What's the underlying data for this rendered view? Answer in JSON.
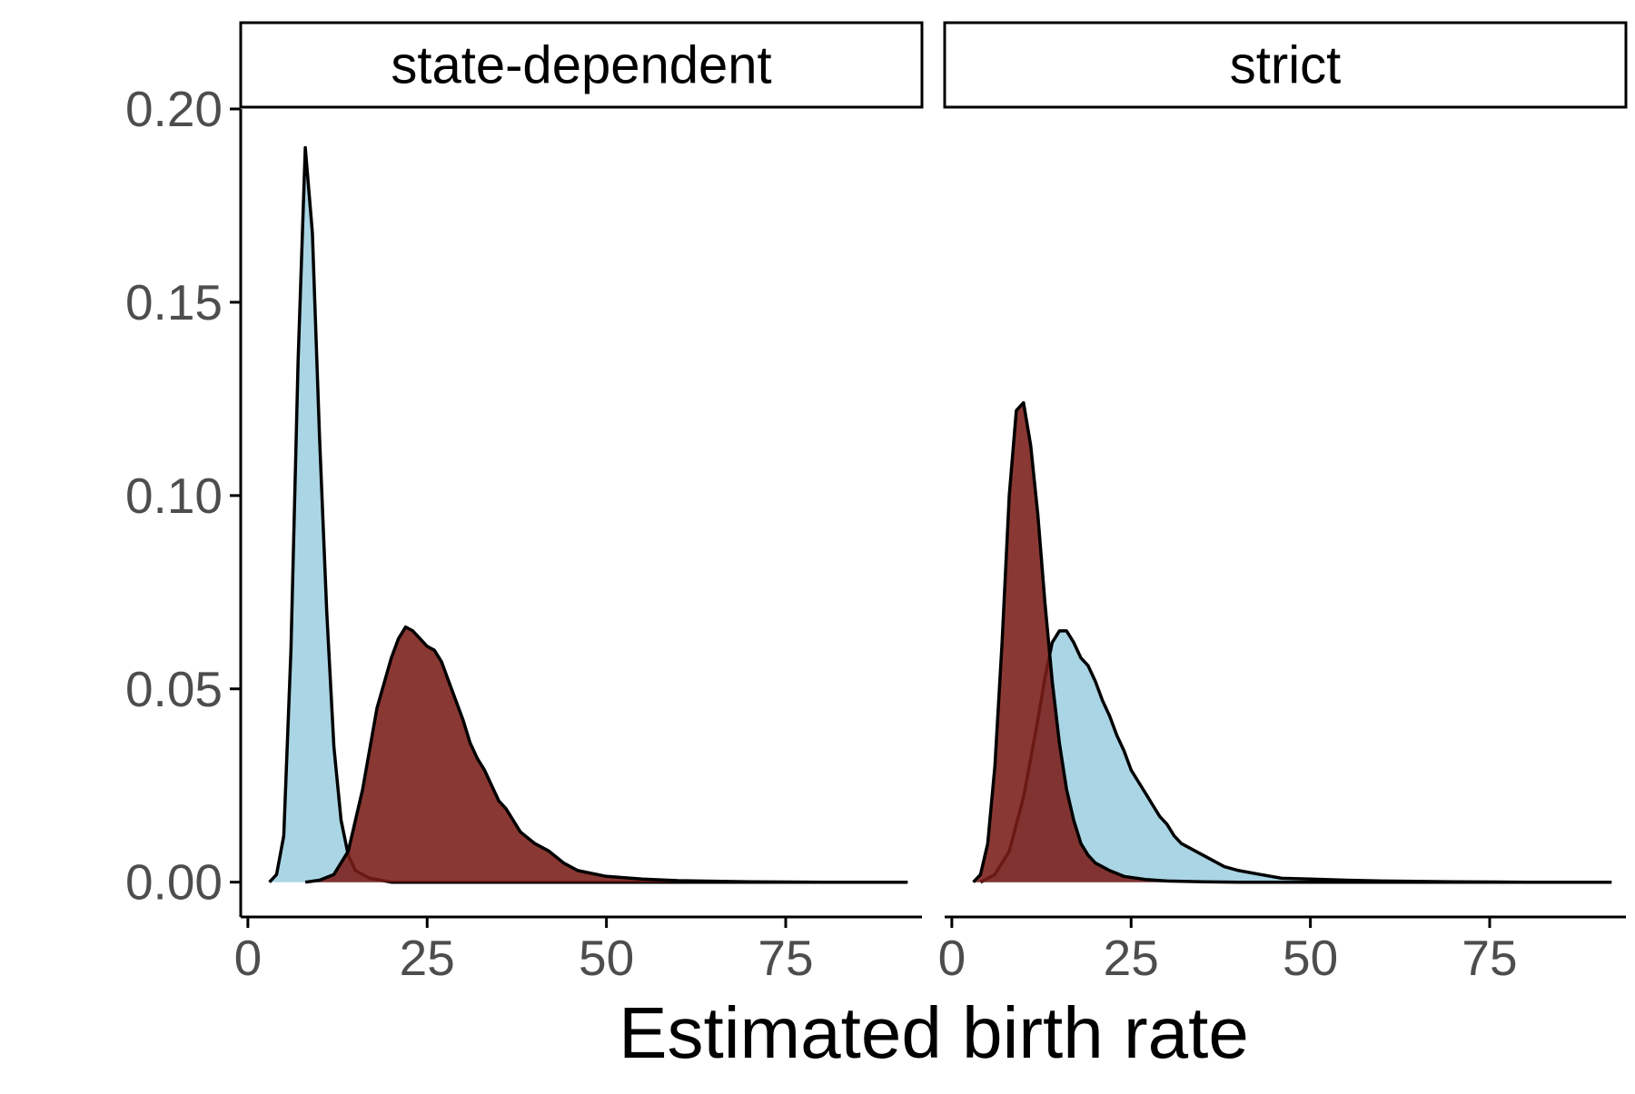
{
  "chart_data": {
    "type": "area",
    "xlabel": "Estimated birth rate",
    "ylabel": "",
    "xlim": [
      -1,
      94
    ],
    "ylim": [
      -0.009,
      0.2
    ],
    "x_ticks": [
      0,
      25,
      50,
      75
    ],
    "x_tick_labels": [
      "0",
      "25",
      "50",
      "75"
    ],
    "y_ticks": [
      0,
      0.05,
      0.1,
      0.15,
      0.2
    ],
    "y_tick_labels": [
      "0.00",
      "0.05",
      "0.10",
      "0.15",
      "0.20"
    ],
    "grid": false,
    "legend": "none",
    "colors": {
      "light_blue": "#9ecfe0",
      "dark_red": "#7a1c17",
      "outline": "#000000"
    },
    "panels": [
      {
        "strip_label": "state-dependent",
        "series": [
          {
            "color": "#9ecfe0",
            "points": [
              [
                3,
                0
              ],
              [
                4,
                0.002
              ],
              [
                5,
                0.012
              ],
              [
                6,
                0.06
              ],
              [
                7,
                0.135
              ],
              [
                8,
                0.19
              ],
              [
                9,
                0.168
              ],
              [
                10,
                0.115
              ],
              [
                11,
                0.07
              ],
              [
                12,
                0.035
              ],
              [
                13,
                0.016
              ],
              [
                14,
                0.007
              ],
              [
                15,
                0.003
              ],
              [
                17,
                0.001
              ],
              [
                20,
                0
              ],
              [
                92,
                0
              ]
            ]
          },
          {
            "color": "#7a1c17",
            "points": [
              [
                8,
                0
              ],
              [
                10,
                0.0005
              ],
              [
                12,
                0.002
              ],
              [
                14,
                0.008
              ],
              [
                16,
                0.024
              ],
              [
                18,
                0.045
              ],
              [
                20,
                0.058
              ],
              [
                21,
                0.063
              ],
              [
                22,
                0.066
              ],
              [
                23,
                0.065
              ],
              [
                24,
                0.063
              ],
              [
                25,
                0.061
              ],
              [
                26,
                0.06
              ],
              [
                27,
                0.057
              ],
              [
                28,
                0.052
              ],
              [
                29,
                0.047
              ],
              [
                30,
                0.042
              ],
              [
                31,
                0.036
              ],
              [
                32,
                0.032
              ],
              [
                33,
                0.029
              ],
              [
                34,
                0.025
              ],
              [
                35,
                0.021
              ],
              [
                36,
                0.019
              ],
              [
                37,
                0.016
              ],
              [
                38,
                0.013
              ],
              [
                40,
                0.01
              ],
              [
                42,
                0.008
              ],
              [
                44,
                0.005
              ],
              [
                46,
                0.003
              ],
              [
                50,
                0.0015
              ],
              [
                55,
                0.0008
              ],
              [
                60,
                0.0004
              ],
              [
                70,
                0.0001
              ],
              [
                80,
                0
              ],
              [
                92,
                0
              ]
            ]
          }
        ]
      },
      {
        "strip_label": "strict",
        "series": [
          {
            "color": "#9ecfe0",
            "points": [
              [
                4,
                0
              ],
              [
                6,
                0.002
              ],
              [
                8,
                0.008
              ],
              [
                10,
                0.022
              ],
              [
                12,
                0.042
              ],
              [
                13,
                0.053
              ],
              [
                14,
                0.062
              ],
              [
                15,
                0.065
              ],
              [
                16,
                0.065
              ],
              [
                17,
                0.062
              ],
              [
                18,
                0.058
              ],
              [
                19,
                0.056
              ],
              [
                20,
                0.052
              ],
              [
                21,
                0.047
              ],
              [
                22,
                0.043
              ],
              [
                23,
                0.038
              ],
              [
                24,
                0.034
              ],
              [
                25,
                0.029
              ],
              [
                26,
                0.026
              ],
              [
                27,
                0.023
              ],
              [
                28,
                0.02
              ],
              [
                29,
                0.017
              ],
              [
                30,
                0.015
              ],
              [
                31,
                0.012
              ],
              [
                32,
                0.01
              ],
              [
                34,
                0.008
              ],
              [
                36,
                0.006
              ],
              [
                38,
                0.004
              ],
              [
                40,
                0.003
              ],
              [
                43,
                0.002
              ],
              [
                46,
                0.001
              ],
              [
                50,
                0.0008
              ],
              [
                55,
                0.0005
              ],
              [
                60,
                0.0003
              ],
              [
                70,
                0.0001
              ],
              [
                80,
                0
              ],
              [
                92,
                0
              ]
            ]
          },
          {
            "color": "#7a1c17",
            "points": [
              [
                3,
                0
              ],
              [
                4,
                0.002
              ],
              [
                5,
                0.01
              ],
              [
                6,
                0.03
              ],
              [
                7,
                0.062
              ],
              [
                8,
                0.1
              ],
              [
                9,
                0.122
              ],
              [
                10,
                0.124
              ],
              [
                11,
                0.113
              ],
              [
                12,
                0.095
              ],
              [
                13,
                0.072
              ],
              [
                14,
                0.052
              ],
              [
                15,
                0.036
              ],
              [
                16,
                0.024
              ],
              [
                17,
                0.016
              ],
              [
                18,
                0.01
              ],
              [
                19,
                0.007
              ],
              [
                20,
                0.005
              ],
              [
                22,
                0.003
              ],
              [
                24,
                0.0015
              ],
              [
                27,
                0.0007
              ],
              [
                30,
                0.0003
              ],
              [
                35,
                0.0001
              ],
              [
                40,
                0
              ],
              [
                92,
                0
              ]
            ]
          }
        ]
      }
    ]
  }
}
